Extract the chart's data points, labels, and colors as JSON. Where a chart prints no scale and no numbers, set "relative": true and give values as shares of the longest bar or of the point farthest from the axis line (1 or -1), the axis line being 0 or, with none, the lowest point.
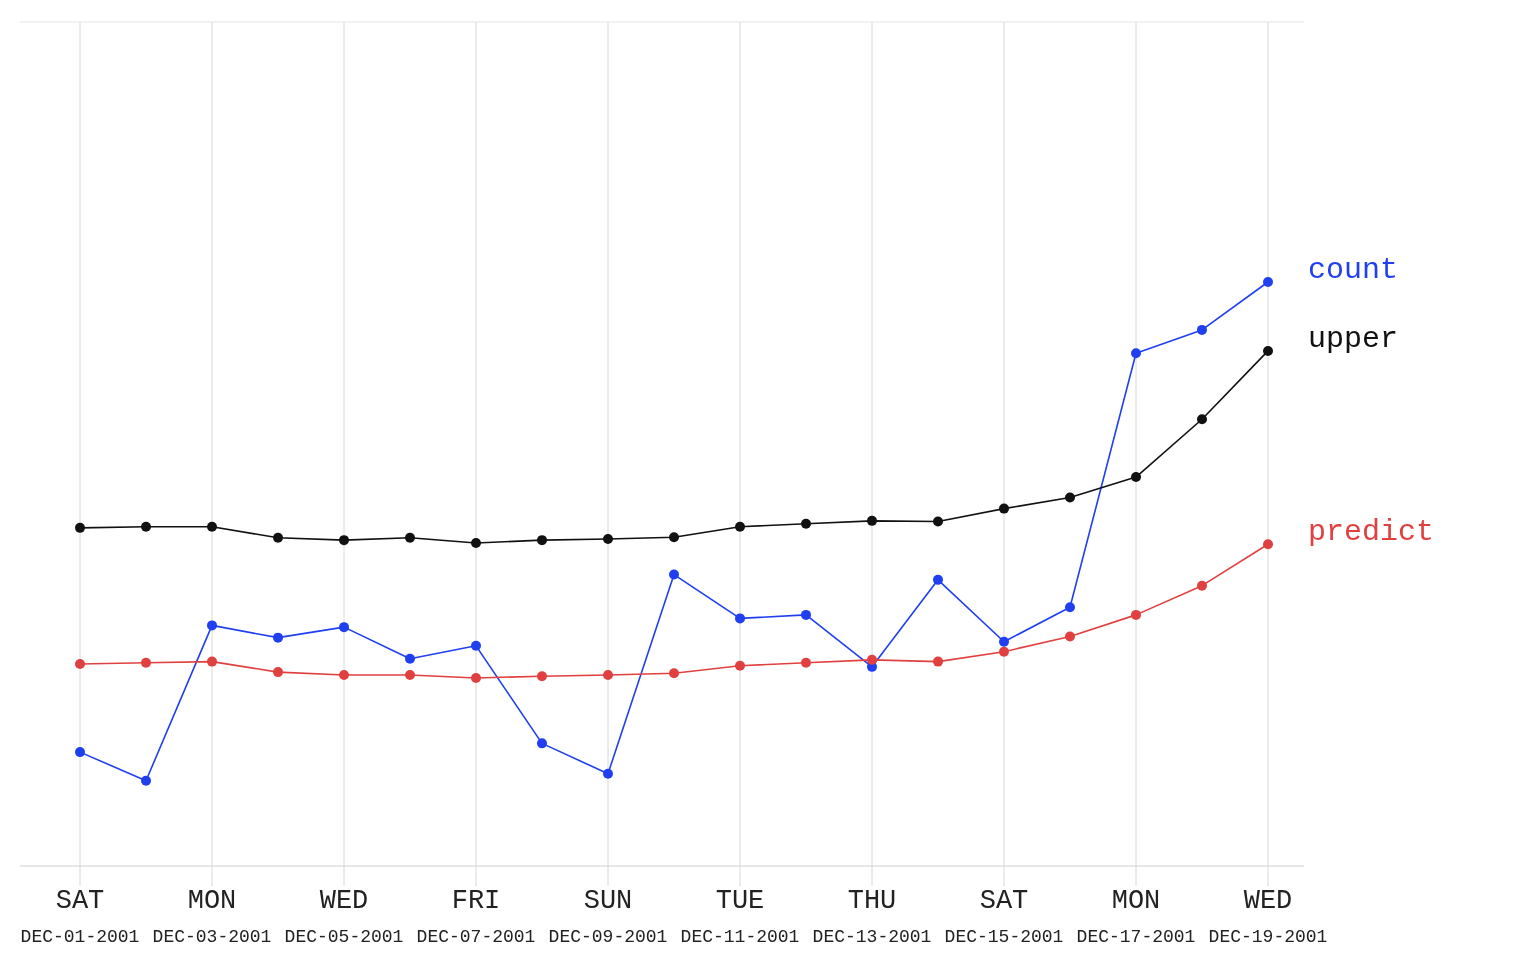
{
  "chart_data": {
    "type": "line",
    "relative": true,
    "legend": false,
    "grid": "x",
    "marker": "circle",
    "line_style": "solid",
    "x": [
      "2001-12-01",
      "2001-12-02",
      "2001-12-03",
      "2001-12-04",
      "2001-12-05",
      "2001-12-06",
      "2001-12-07",
      "2001-12-08",
      "2001-12-09",
      "2001-12-10",
      "2001-12-11",
      "2001-12-12",
      "2001-12-13",
      "2001-12-14",
      "2001-12-15",
      "2001-12-16",
      "2001-12-17",
      "2001-12-18",
      "2001-12-19"
    ],
    "xlim": [
      "2001-12-01",
      "2001-12-19"
    ],
    "xticks": [
      {
        "value": "2001-12-01",
        "label": "SAT DEC-01-2001"
      },
      {
        "value": "2001-12-03",
        "label": "MON DEC-03-2001"
      },
      {
        "value": "2001-12-05",
        "label": "WED DEC-05-2001"
      },
      {
        "value": "2001-12-07",
        "label": "FRI DEC-07-2001"
      },
      {
        "value": "2001-12-09",
        "label": "SUN DEC-09-2001"
      },
      {
        "value": "2001-12-11",
        "label": "TUE DEC-11-2001"
      },
      {
        "value": "2001-12-13",
        "label": "THU DEC-13-2001"
      },
      {
        "value": "2001-12-15",
        "label": "SAT DEC-15-2001"
      },
      {
        "value": "2001-12-17",
        "label": "MON DEC-17-2001"
      },
      {
        "value": "2001-12-19",
        "label": "WED DEC-19-2001"
      }
    ],
    "series": [
      {
        "name": "count",
        "color": "#1f3ff0",
        "values": [
          0.195,
          0.146,
          0.412,
          0.391,
          0.409,
          0.355,
          0.377,
          0.21,
          0.158,
          0.499,
          0.424,
          0.43,
          0.341,
          0.49,
          0.384,
          0.443,
          0.878,
          0.918,
          1
        ]
      },
      {
        "name": "upper",
        "color": "#111111",
        "values": [
          0.579,
          0.581,
          0.581,
          0.562,
          0.558,
          0.562,
          0.553,
          0.558,
          0.56,
          0.563,
          0.581,
          0.586,
          0.591,
          0.59,
          0.612,
          0.631,
          0.666,
          0.765,
          0.882
        ]
      },
      {
        "name": "predict",
        "color": "#e04040",
        "values": [
          0.346,
          0.348,
          0.35,
          0.332,
          0.327,
          0.327,
          0.322,
          0.325,
          0.327,
          0.33,
          0.343,
          0.348,
          0.353,
          0.35,
          0.367,
          0.393,
          0.43,
          0.48,
          0.551
        ]
      }
    ]
  }
}
